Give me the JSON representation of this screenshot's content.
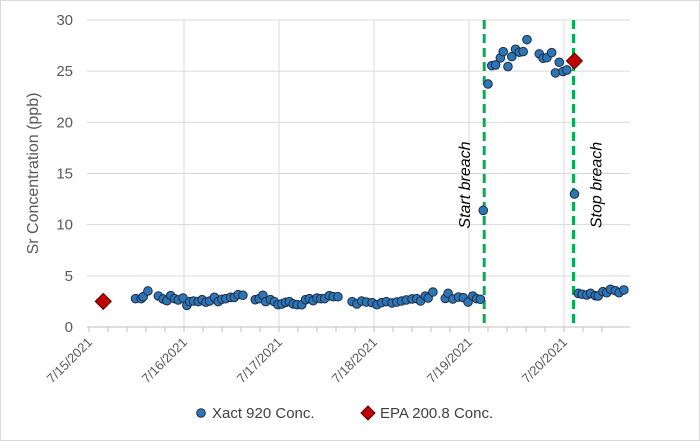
{
  "chart_data": {
    "type": "scatter",
    "title": "",
    "xlabel": "",
    "ylabel": "Sr Concentration (ppb)",
    "x_units": "days since 7/15/2021 00:00",
    "xlim": [
      0,
      5.7
    ],
    "ylim": [
      0,
      30
    ],
    "yticks": [
      0,
      5,
      10,
      15,
      20,
      25,
      30
    ],
    "xtick_labels": [
      "7/15/2021",
      "7/16/2021",
      "7/17/2021",
      "7/18/2021",
      "7/19/2021",
      "7/20/2021"
    ],
    "grid": true,
    "legend_position": "bottom",
    "series": [
      {
        "name": "Xact 920 Conc.",
        "marker": "circle",
        "color": "#2e75b6",
        "x": [
          0.49,
          0.55,
          0.57,
          0.62,
          0.73,
          0.78,
          0.82,
          0.86,
          0.9,
          0.94,
          0.99,
          1.03,
          1.06,
          1.1,
          1.15,
          1.19,
          1.23,
          1.27,
          1.32,
          1.36,
          1.4,
          1.44,
          1.49,
          1.53,
          1.57,
          1.62,
          1.75,
          1.79,
          1.83,
          1.86,
          1.91,
          1.95,
          1.99,
          2.03,
          2.07,
          2.11,
          2.15,
          2.19,
          2.24,
          2.28,
          2.32,
          2.36,
          2.4,
          2.44,
          2.48,
          2.53,
          2.57,
          2.62,
          2.77,
          2.82,
          2.87,
          2.92,
          2.98,
          3.03,
          3.08,
          3.13,
          3.19,
          3.24,
          3.29,
          3.34,
          3.4,
          3.45,
          3.49,
          3.54,
          3.57,
          3.62,
          3.75,
          3.78,
          3.83,
          3.89,
          3.94,
          3.99,
          4.04,
          4.08,
          4.12,
          4.15,
          4.2,
          4.24,
          4.28,
          4.33,
          4.36,
          4.41,
          4.45,
          4.49,
          4.53,
          4.57,
          4.61,
          4.74,
          4.78,
          4.82,
          4.87,
          4.91,
          4.95,
          4.99,
          5.03,
          5.11,
          5.15,
          5.19,
          5.24,
          5.28,
          5.33,
          5.36,
          5.41,
          5.45,
          5.49,
          5.54,
          5.58,
          5.63
        ],
        "y": [
          2.77,
          2.77,
          2.96,
          3.52,
          3.03,
          2.74,
          2.57,
          3.06,
          2.77,
          2.64,
          2.83,
          2.12,
          2.48,
          2.54,
          2.48,
          2.67,
          2.42,
          2.54,
          2.9,
          2.48,
          2.71,
          2.77,
          2.9,
          2.9,
          3.16,
          3.1,
          2.67,
          2.77,
          3.1,
          2.48,
          2.67,
          2.48,
          2.18,
          2.25,
          2.41,
          2.48,
          2.25,
          2.18,
          2.18,
          2.67,
          2.77,
          2.57,
          2.83,
          2.77,
          2.77,
          3.06,
          2.96,
          2.96,
          2.48,
          2.25,
          2.54,
          2.44,
          2.38,
          2.18,
          2.38,
          2.48,
          2.35,
          2.44,
          2.54,
          2.64,
          2.74,
          2.77,
          2.54,
          3.03,
          2.83,
          3.42,
          2.8,
          3.29,
          2.74,
          2.93,
          2.86,
          2.44,
          3.03,
          2.77,
          2.71,
          11.4,
          23.75,
          25.54,
          25.61,
          26.3,
          26.91,
          25.45,
          26.42,
          27.14,
          26.85,
          26.91,
          28.08,
          26.69,
          26.26,
          26.32,
          26.81,
          24.83,
          25.87,
          24.96,
          25.12,
          13.0,
          3.29,
          3.2,
          3.13,
          3.29,
          3.06,
          3.03,
          3.45,
          3.35,
          3.69,
          3.55,
          3.35,
          3.62
        ]
      },
      {
        "name": "EPA 200.8 Conc.",
        "marker": "diamond",
        "color": "#c00000",
        "x": [
          0.15,
          5.11
        ],
        "y": [
          2.5,
          26.0
        ]
      }
    ],
    "vlines": [
      {
        "x": 4.16,
        "label": "Start breach",
        "color": "#00b050",
        "label_side": "left"
      },
      {
        "x": 5.1,
        "label": "Stop breach",
        "color": "#00b050",
        "label_side": "right"
      }
    ]
  }
}
